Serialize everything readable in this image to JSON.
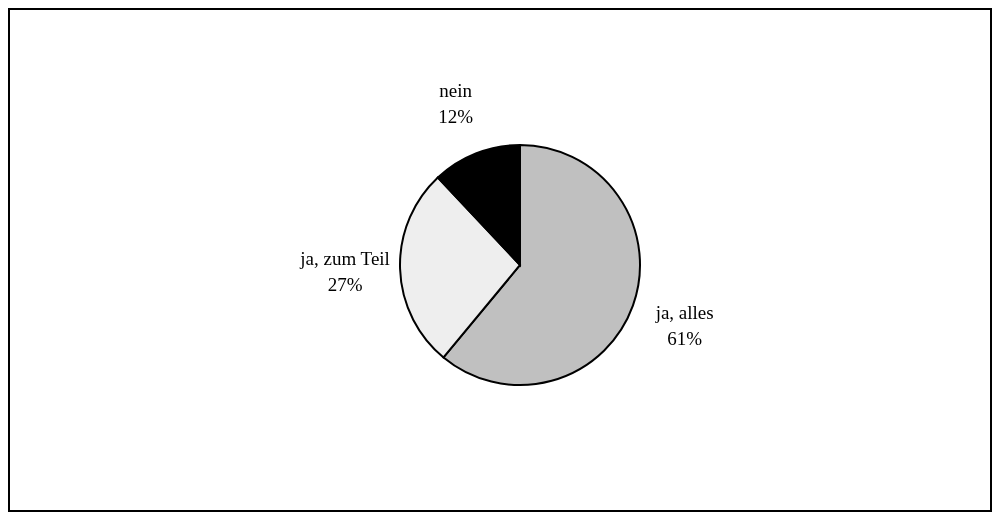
{
  "chart_data": {
    "type": "pie",
    "categories": [
      "ja, alles",
      "ja, zum Teil",
      "nein"
    ],
    "values": [
      61,
      27,
      12
    ],
    "value_labels": [
      "61%",
      "27%",
      "12%"
    ],
    "colors": [
      "#c0c0c0",
      "#eeeeee",
      "#000000"
    ],
    "legend": false
  }
}
